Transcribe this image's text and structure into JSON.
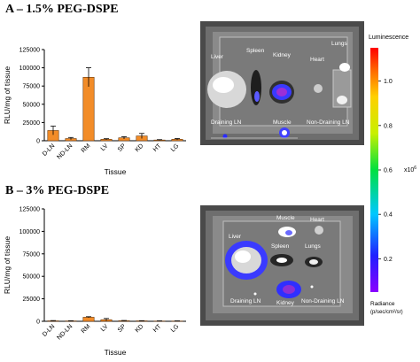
{
  "panels": {
    "a": {
      "title": "A – 1.5% PEG-DSPE"
    },
    "b": {
      "title": "B – 3% PEG-DSPE"
    }
  },
  "chart_data": [
    {
      "type": "bar",
      "title": "",
      "xlabel": "Tissue",
      "ylabel": "RLU/mg of tissue",
      "categories": [
        "D-LN",
        "ND-LN",
        "RM",
        "LV",
        "SP",
        "KD",
        "HT",
        "LG"
      ],
      "values": [
        14000,
        3000,
        87000,
        2000,
        4000,
        6500,
        1000,
        2000
      ],
      "errors": [
        6000,
        1500,
        13000,
        800,
        1500,
        3500,
        500,
        1000
      ],
      "ylim": [
        0,
        125000
      ],
      "yticks": [
        "0",
        "25000",
        "50000",
        "75000",
        "100000",
        "125000"
      ],
      "color": "#f28c28"
    },
    {
      "type": "bar",
      "title": "",
      "xlabel": "Tissue",
      "ylabel": "RLU/mg of tissue",
      "categories": [
        "D-LN",
        "ND-LN",
        "RM",
        "LV",
        "SP",
        "KD",
        "HT",
        "LG"
      ],
      "values": [
        500,
        400,
        4500,
        1800,
        600,
        500,
        300,
        300
      ],
      "errors": [
        300,
        200,
        600,
        1300,
        300,
        200,
        150,
        150
      ],
      "ylim": [
        0,
        125000
      ],
      "yticks": [
        "0",
        "25000",
        "50000",
        "75000",
        "100000",
        "125000"
      ],
      "color": "#f28c28"
    }
  ],
  "photos": {
    "a": {
      "labels": [
        "Liver",
        "Spleen",
        "Kidney",
        "Heart",
        "Lungs",
        "Draining LN",
        "Muscle",
        "Non-Draining LN"
      ]
    },
    "b": {
      "labels": [
        "Muscle",
        "Heart",
        "Liver",
        "Spleen",
        "Lungs",
        "Draining LN",
        "Kidney",
        "Non-Draining LN"
      ]
    }
  },
  "colorbar": {
    "title": "Luminescence",
    "ticks": [
      "1.0",
      "0.8",
      "0.6",
      "0.4",
      "0.2"
    ],
    "ticks_value": [
      1.0,
      0.8,
      0.6,
      0.4,
      0.2
    ],
    "range": [
      0.05,
      1.15
    ],
    "multiplier": "x10",
    "multiplier_exp": "6",
    "axis_label": "Radiance",
    "unit_label": "(p/sec/cm²/sr)"
  }
}
